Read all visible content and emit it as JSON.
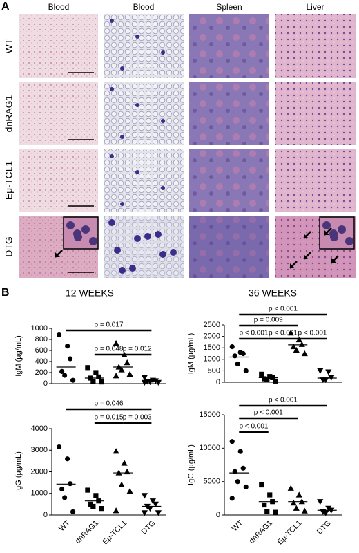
{
  "panel_a": {
    "label": "A",
    "columns": [
      "Blood",
      "Blood",
      "Spleen",
      "Liver"
    ],
    "rows": [
      "WT",
      "dnRAG1",
      "Eμ-TCL1",
      "DTG"
    ]
  },
  "panel_b": {
    "label": "B"
  },
  "chart_data": [
    {
      "type": "dot",
      "title": "12 WEEKS",
      "ylabel": "IgM (µg/mL)",
      "categories": [
        null,
        null,
        null,
        null
      ],
      "markers": [
        "circle",
        "square",
        "triangle",
        "triangle-down"
      ],
      "color": "#000000",
      "values": [
        [
          880,
          680,
          450,
          220,
          150,
          60
        ],
        [
          290,
          200,
          120,
          100,
          40,
          30
        ],
        [
          730,
          520,
          380,
          300,
          250,
          170,
          140
        ],
        [
          110,
          60,
          50,
          40,
          30,
          20,
          20
        ]
      ],
      "medians": [
        300,
        100,
        300,
        50
      ],
      "ylim": [
        0,
        1000
      ],
      "yticks": [
        0,
        200,
        400,
        600,
        800,
        1000
      ],
      "comparisons": [
        {
          "between": [
            0,
            3
          ],
          "label": "p = 0.017"
        },
        {
          "between": [
            1,
            2
          ],
          "label": "p = 0.048"
        },
        {
          "between": [
            2,
            3
          ],
          "label": "p = 0.012"
        }
      ]
    },
    {
      "type": "dot",
      "ylabel": "IgG (µg/mL)",
      "categories": [
        "WT",
        "dnRAG1",
        "Eμ-TCL1",
        "DTG"
      ],
      "markers": [
        "circle",
        "square",
        "triangle",
        "triangle-down"
      ],
      "color": "#000000",
      "values": [
        [
          3150,
          2600,
          1450,
          1200,
          800,
          150
        ],
        [
          1150,
          900,
          650,
          500,
          400,
          300
        ],
        [
          2950,
          2400,
          2000,
          1950,
          1400,
          1100,
          200
        ],
        [
          900,
          650,
          500,
          400,
          300,
          100,
          100
        ]
      ],
      "medians": [
        1430,
        650,
        1950,
        400
      ],
      "ylim": [
        0,
        4000
      ],
      "yticks": [
        0,
        1000,
        2000,
        3000,
        4000
      ],
      "comparisons": [
        {
          "between": [
            0,
            3
          ],
          "label": "p = 0.046"
        },
        {
          "between": [
            1,
            2
          ],
          "label": "p = 0.015"
        },
        {
          "between": [
            2,
            3
          ],
          "label": "p = 0.003"
        }
      ]
    },
    {
      "type": "dot",
      "title": "36 WEEKS",
      "ylabel": "IgM (µg/mL)",
      "categories": [
        null,
        null,
        null,
        null
      ],
      "markers": [
        "circle",
        "square",
        "triangle",
        "triangle-down"
      ],
      "color": "#000000",
      "values": [
        [
          1550,
          1300,
          1250,
          1150,
          800,
          500
        ],
        [
          350,
          250,
          200,
          150,
          100,
          50
        ],
        [
          2150,
          1850,
          1650,
          1550,
          1400,
          1250
        ],
        [
          500,
          450,
          200,
          100,
          100
        ]
      ],
      "medians": [
        1100,
        200,
        1630,
        180
      ],
      "ylim": [
        0,
        2500
      ],
      "yticks": [
        0,
        500,
        1000,
        1500,
        2000,
        2500
      ],
      "comparisons": [
        {
          "between": [
            0,
            3
          ],
          "label": "p < 0.001"
        },
        {
          "between": [
            0,
            2
          ],
          "label": "p = 0.009"
        },
        {
          "between": [
            0,
            1
          ],
          "label": "p < 0.001"
        },
        {
          "between": [
            1,
            2
          ],
          "label": "p < 0.001"
        },
        {
          "between": [
            2,
            3
          ],
          "label": "p < 0.001"
        }
      ]
    },
    {
      "type": "dot",
      "ylabel": "IgG (µg/mL)",
      "categories": [
        "WT",
        "dnRAG1",
        "Eμ-TCL1",
        "DTG"
      ],
      "markers": [
        "circle",
        "square",
        "triangle",
        "triangle-down"
      ],
      "color": "#000000",
      "values": [
        [
          11000,
          9500,
          7000,
          6500,
          5000,
          4200,
          2500
        ],
        [
          4500,
          3000,
          2000,
          1500,
          500,
          400
        ],
        [
          4000,
          3000,
          2000,
          1800,
          1000,
          600
        ],
        [
          2000,
          1000,
          700,
          500,
          300
        ]
      ],
      "medians": [
        6300,
        2000,
        2000,
        700
      ],
      "ylim": [
        0,
        15000
      ],
      "yticks": [
        0,
        5000,
        10000,
        15000
      ],
      "comparisons": [
        {
          "between": [
            0,
            3
          ],
          "label": "p < 0.001"
        },
        {
          "between": [
            0,
            2
          ],
          "label": "p < 0.001"
        },
        {
          "between": [
            0,
            1
          ],
          "label": "p < 0.001"
        }
      ]
    }
  ]
}
